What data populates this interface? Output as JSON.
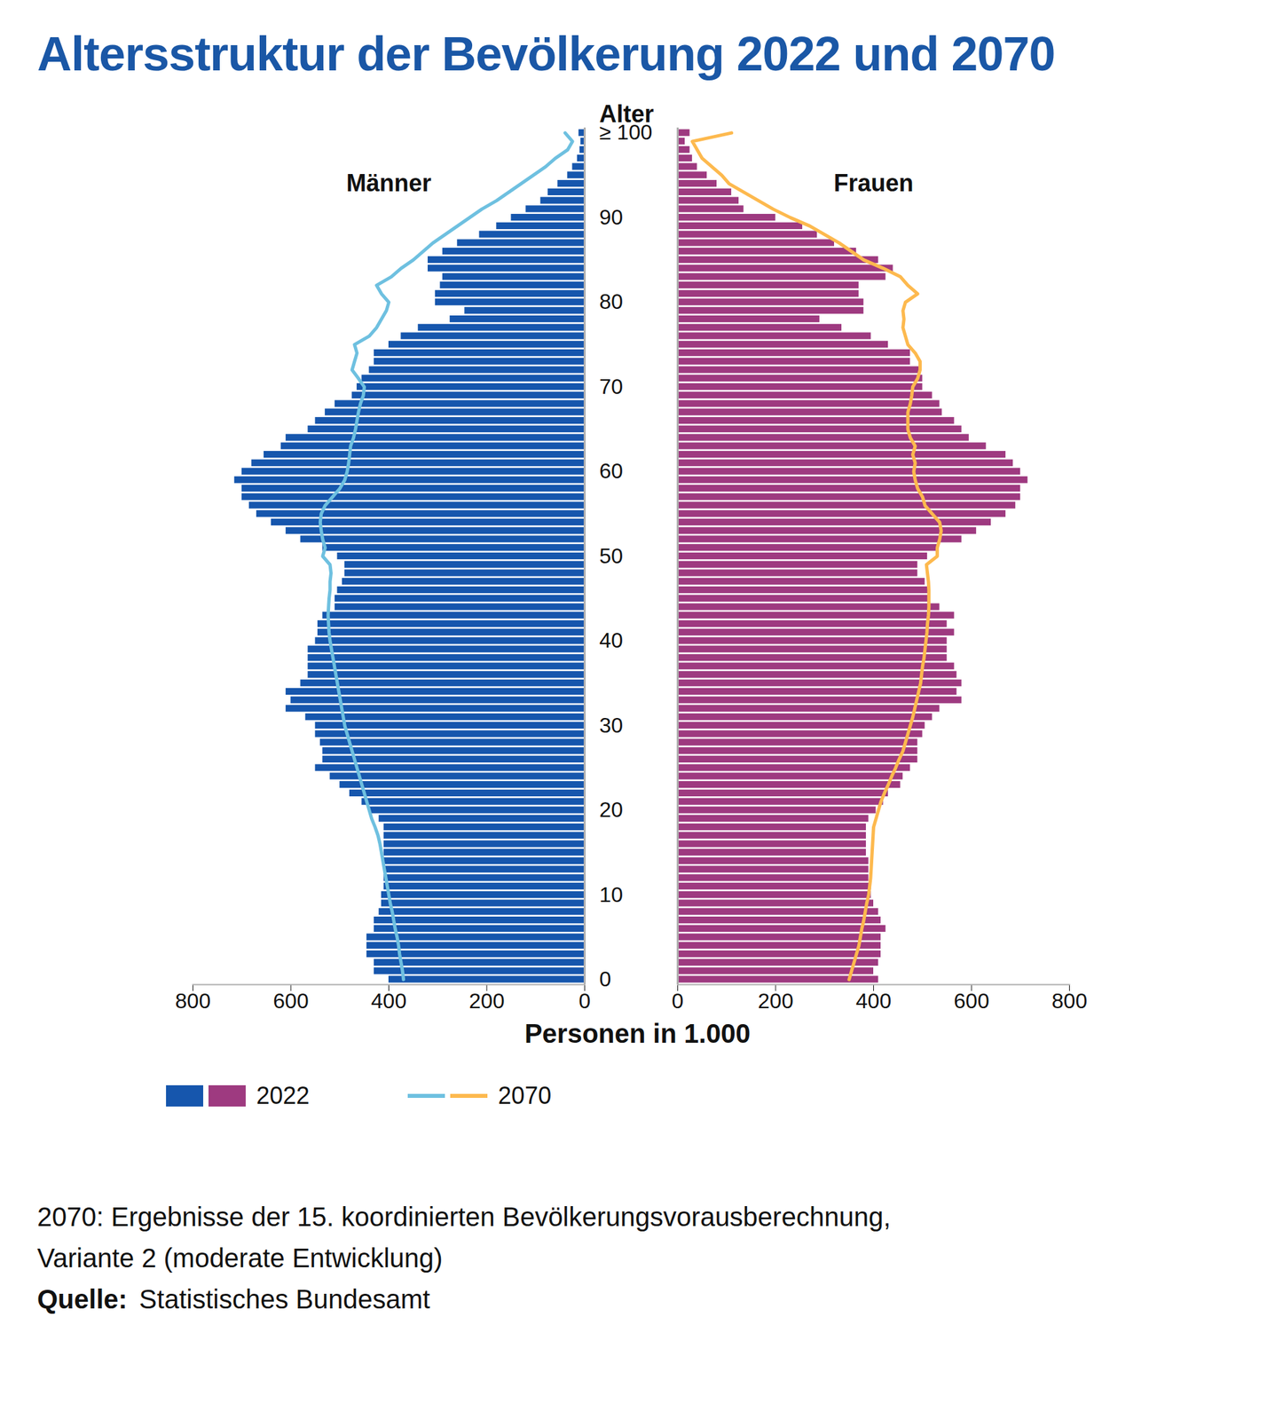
{
  "chart_data": {
    "type": "bar",
    "orientation": "horizontal",
    "title": "Altersstruktur der Bevölkerung 2022 und 2070",
    "x_label": "Personen in 1.000",
    "y_label": "Alter",
    "y": [
      0,
      1,
      2,
      3,
      4,
      5,
      6,
      7,
      8,
      9,
      10,
      11,
      12,
      13,
      14,
      15,
      16,
      17,
      18,
      19,
      20,
      21,
      22,
      23,
      24,
      25,
      26,
      27,
      28,
      29,
      30,
      31,
      32,
      33,
      34,
      35,
      36,
      37,
      38,
      39,
      40,
      41,
      42,
      43,
      44,
      45,
      46,
      47,
      48,
      49,
      50,
      51,
      52,
      53,
      54,
      55,
      56,
      57,
      58,
      59,
      60,
      61,
      62,
      63,
      64,
      65,
      66,
      67,
      68,
      69,
      70,
      71,
      72,
      73,
      74,
      75,
      76,
      77,
      78,
      79,
      80,
      81,
      82,
      83,
      84,
      85,
      86,
      87,
      88,
      89,
      90,
      91,
      92,
      93,
      94,
      95,
      96,
      97,
      98,
      99,
      100
    ],
    "yticks": [
      0,
      10,
      20,
      30,
      40,
      50,
      60,
      70,
      80,
      90,
      {
        "value": 100,
        "label": "≥ 100"
      }
    ],
    "panels": [
      {
        "name": "Männer",
        "xlim": [
          800,
          0
        ],
        "xticks": [
          800,
          600,
          400,
          200,
          0
        ],
        "series": [
          {
            "name": "2022",
            "type": "bar",
            "color": "#1656ad",
            "values": [
              400,
              430,
              430,
              445,
              445,
              445,
              430,
              430,
              420,
              415,
              415,
              410,
              410,
              410,
              410,
              410,
              410,
              410,
              410,
              420,
              440,
              455,
              480,
              500,
              520,
              550,
              535,
              535,
              540,
              550,
              550,
              570,
              610,
              600,
              610,
              580,
              565,
              565,
              565,
              565,
              550,
              545,
              545,
              535,
              510,
              510,
              505,
              495,
              490,
              490,
              505,
              535,
              580,
              610,
              640,
              670,
              685,
              700,
              700,
              715,
              700,
              680,
              655,
              620,
              610,
              565,
              550,
              530,
              510,
              475,
              465,
              455,
              440,
              430,
              430,
              400,
              375,
              340,
              275,
              245,
              305,
              305,
              295,
              290,
              320,
              320,
              290,
              260,
              215,
              180,
              150,
              120,
              90,
              75,
              55,
              35,
              25,
              15,
              10,
              8,
              12
            ]
          },
          {
            "name": "2070",
            "type": "line",
            "color": "#6ec0e0",
            "values": [
              370,
              372,
              375,
              378,
              380,
              383,
              387,
              390,
              393,
              397,
              400,
              403,
              406,
              409,
              412,
              415,
              418,
              422,
              428,
              435,
              440,
              445,
              450,
              455,
              460,
              465,
              470,
              475,
              480,
              485,
              490,
              493,
              496,
              499,
              502,
              505,
              508,
              511,
              514,
              517,
              520,
              522,
              523,
              524,
              523,
              522,
              520,
              520,
              518,
              520,
              535,
              530,
              535,
              538,
              540,
              538,
              530,
              515,
              500,
              490,
              485,
              482,
              480,
              478,
              472,
              468,
              465,
              462,
              458,
              452,
              450,
              462,
              475,
              470,
              465,
              470,
              440,
              425,
              415,
              405,
              400,
              415,
              425,
              395,
              375,
              350,
              330,
              310,
              285,
              260,
              235,
              210,
              180,
              155,
              130,
              105,
              80,
              60,
              35,
              25,
              40
            ]
          }
        ]
      },
      {
        "name": "Frauen",
        "xlim": [
          0,
          800
        ],
        "xticks": [
          0,
          200,
          400,
          600,
          800
        ],
        "series": [
          {
            "name": "2022",
            "type": "bar",
            "color": "#9e3a80",
            "values": [
              410,
              400,
              410,
              415,
              415,
              415,
              425,
              415,
              410,
              400,
              395,
              395,
              390,
              390,
              390,
              385,
              385,
              385,
              385,
              390,
              405,
              420,
              430,
              455,
              460,
              475,
              490,
              490,
              490,
              500,
              505,
              520,
              535,
              580,
              570,
              580,
              570,
              565,
              550,
              550,
              550,
              565,
              550,
              565,
              535,
              515,
              515,
              505,
              490,
              490,
              510,
              530,
              580,
              610,
              640,
              670,
              690,
              700,
              700,
              715,
              700,
              685,
              670,
              630,
              595,
              580,
              565,
              540,
              535,
              520,
              500,
              500,
              495,
              475,
              475,
              430,
              395,
              335,
              290,
              380,
              380,
              370,
              370,
              425,
              440,
              410,
              365,
              320,
              285,
              255,
              200,
              135,
              125,
              110,
              80,
              60,
              40,
              30,
              25,
              15,
              25
            ]
          },
          {
            "name": "2070",
            "type": "line",
            "color": "#fdb94e",
            "values": [
              350,
              355,
              360,
              365,
              370,
              373,
              376,
              380,
              383,
              386,
              390,
              392,
              394,
              395,
              396,
              397,
              398,
              399,
              400,
              405,
              410,
              415,
              422,
              430,
              437,
              445,
              452,
              460,
              465,
              470,
              475,
              480,
              484,
              488,
              492,
              496,
              498,
              500,
              503,
              505,
              507,
              509,
              510,
              512,
              513,
              513,
              513,
              512,
              510,
              508,
              530,
              530,
              535,
              538,
              535,
              520,
              505,
              500,
              490,
              485,
              482,
              485,
              480,
              485,
              475,
              470,
              470,
              470,
              475,
              478,
              480,
              490,
              495,
              495,
              485,
              470,
              465,
              460,
              462,
              460,
              465,
              490,
              470,
              455,
              420,
              380,
              355,
              330,
              300,
              270,
              230,
              195,
              165,
              135,
              105,
              90,
              70,
              50,
              40,
              30,
              110
            ]
          }
        ]
      }
    ],
    "notes": [
      "2070: Ergebnisse der 15. koordinierten Bevölkerungsvorausberechnung,",
      "Variante 2 (moderate Entwicklung)"
    ],
    "source_label": "Quelle:",
    "source": "Statistisches Bundesamt"
  }
}
